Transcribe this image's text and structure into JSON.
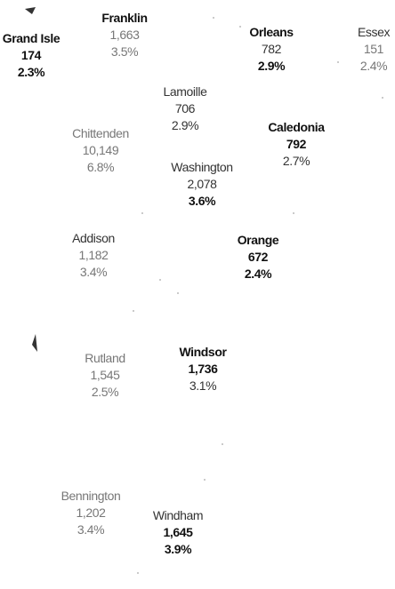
{
  "counties": [
    {
      "name": "Grand Isle",
      "count": "174",
      "percent": "2.3%"
    },
    {
      "name": "Franklin",
      "count": "1,663",
      "percent": "3.5%"
    },
    {
      "name": "Orleans",
      "count": "782",
      "percent": "2.9%"
    },
    {
      "name": "Essex",
      "count": "151",
      "percent": "2.4%"
    },
    {
      "name": "Lamoille",
      "count": "706",
      "percent": "2.9%"
    },
    {
      "name": "Chittenden",
      "count": "10,149",
      "percent": "6.8%"
    },
    {
      "name": "Caledonia",
      "count": "792",
      "percent": "2.7%"
    },
    {
      "name": "Washington",
      "count": "2,078",
      "percent": "3.6%"
    },
    {
      "name": "Addison",
      "count": "1,182",
      "percent": "3.4%"
    },
    {
      "name": "Orange",
      "count": "672",
      "percent": "2.4%"
    },
    {
      "name": "Rutland",
      "count": "1,545",
      "percent": "2.5%"
    },
    {
      "name": "Windsor",
      "count": "1,736",
      "percent": "3.1%"
    },
    {
      "name": "Bennington",
      "count": "1,202",
      "percent": "3.4%"
    },
    {
      "name": "Windham",
      "count": "1,645",
      "percent": "3.9%"
    }
  ]
}
